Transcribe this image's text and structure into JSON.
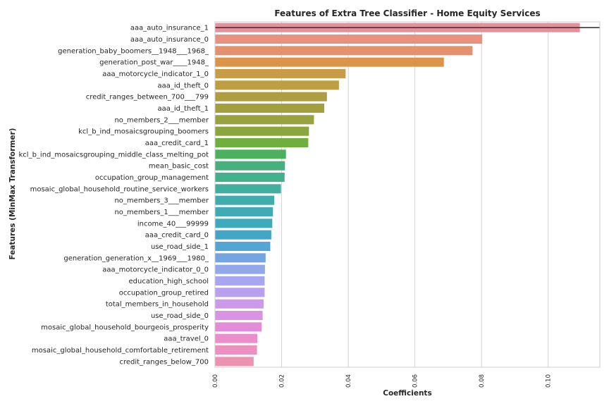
{
  "chart_data": {
    "type": "bar",
    "orientation": "horizontal",
    "title": "Features of Extra Tree Classifier - Home Equity Services",
    "xlabel": "Coefficients",
    "ylabel": "Features (MinMax Transformer)",
    "xlim": [
      0,
      0.1155
    ],
    "xticks": [
      0.0,
      0.02,
      0.04,
      0.06,
      0.08,
      0.1
    ],
    "xtick_labels": [
      "0.00",
      "0.02",
      "0.04",
      "0.06",
      "0.08",
      "0.10"
    ],
    "grid": "vertical",
    "categories": [
      "aaa_auto_insurance_1",
      "aaa_auto_insurance_0",
      "generation_baby_boomers__1948___1968_",
      "generation_post_war____1948_",
      "aaa_motorcycle_indicator_1_0",
      "aaa_id_theft_0",
      "credit_ranges_between_700___799",
      "aaa_id_theft_1",
      "no_members_2___member",
      "kcl_b_ind_mosaicsgrouping_boomers",
      "aaa_credit_card_1",
      "kcl_b_ind_mosaicsgrouping_middle_class_melting_pot",
      "mean_basic_cost",
      "occupation_group_management",
      "mosaic_global_household_routine_service_workers",
      "no_members_3___member",
      "no_members_1___member",
      "income_40___99999",
      "aaa_credit_card_0",
      "use_road_side_1",
      "generation_generation_x__1969___1980_",
      "aaa_motorcycle_indicator_0_0",
      "education_high_school",
      "occupation_group_retired",
      "total_members_in_household",
      "use_road_side_0",
      "mosaic_global_household_bourgeois_prosperity",
      "aaa_travel_0",
      "mosaic_global_household_comfortable_retirement",
      "credit_ranges_below_700"
    ],
    "values": [
      0.1095,
      0.0802,
      0.0773,
      0.0687,
      0.0392,
      0.0372,
      0.0336,
      0.0328,
      0.0297,
      0.0282,
      0.028,
      0.0213,
      0.021,
      0.0209,
      0.0198,
      0.0178,
      0.0174,
      0.0172,
      0.0169,
      0.0166,
      0.0152,
      0.015,
      0.0149,
      0.0149,
      0.0146,
      0.0143,
      0.014,
      0.0127,
      0.0126,
      0.0116
    ],
    "colors": [
      "#e8909a",
      "#e8917f",
      "#e4926e",
      "#db9448",
      "#c99b46",
      "#bd9e43",
      "#ad9e40",
      "#a29f3e",
      "#98a23e",
      "#8aa73e",
      "#6eaf3e",
      "#4cb060",
      "#48b07c",
      "#45b08c",
      "#42ae9e",
      "#40acac",
      "#3fabb5",
      "#40a9bc",
      "#42a6c6",
      "#54a5d4",
      "#73a5e0",
      "#93a8ea",
      "#a7a6ee",
      "#b9a0ee",
      "#cb9bea",
      "#d993e2",
      "#e38cd8",
      "#ea8ecc",
      "#ec90bf",
      "#ec93b1"
    ]
  }
}
